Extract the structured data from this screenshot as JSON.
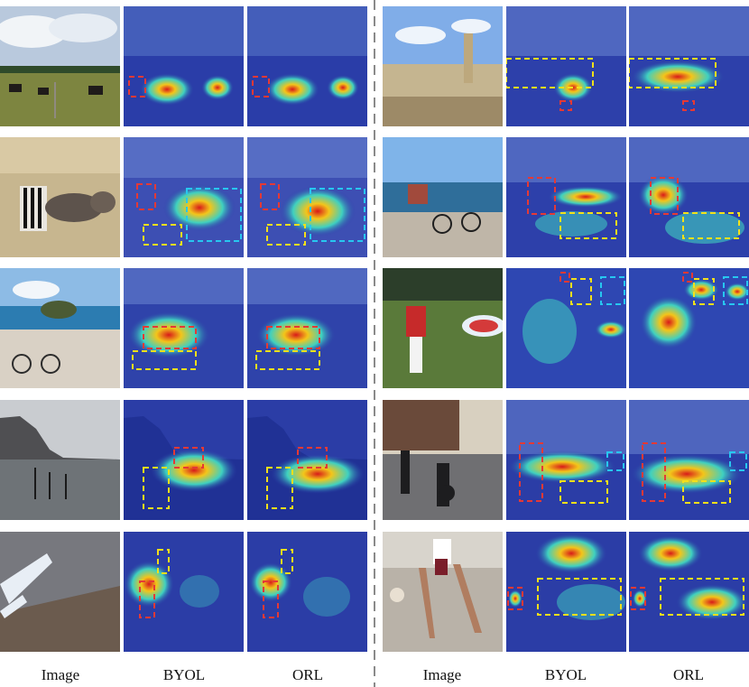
{
  "figure": {
    "left_captions": [
      "Image",
      "BYOL",
      "ORL"
    ],
    "right_captions": [
      "Image",
      "BYOL",
      "ORL"
    ]
  },
  "colors": {
    "red_box": "#e53935",
    "yellow_box": "#f4e01a",
    "cyan_box": "#27c7f0",
    "heat_low": "#2a3da8",
    "heat_mid": "#3fd0c0",
    "heat_high": "#d81a1a"
  }
}
